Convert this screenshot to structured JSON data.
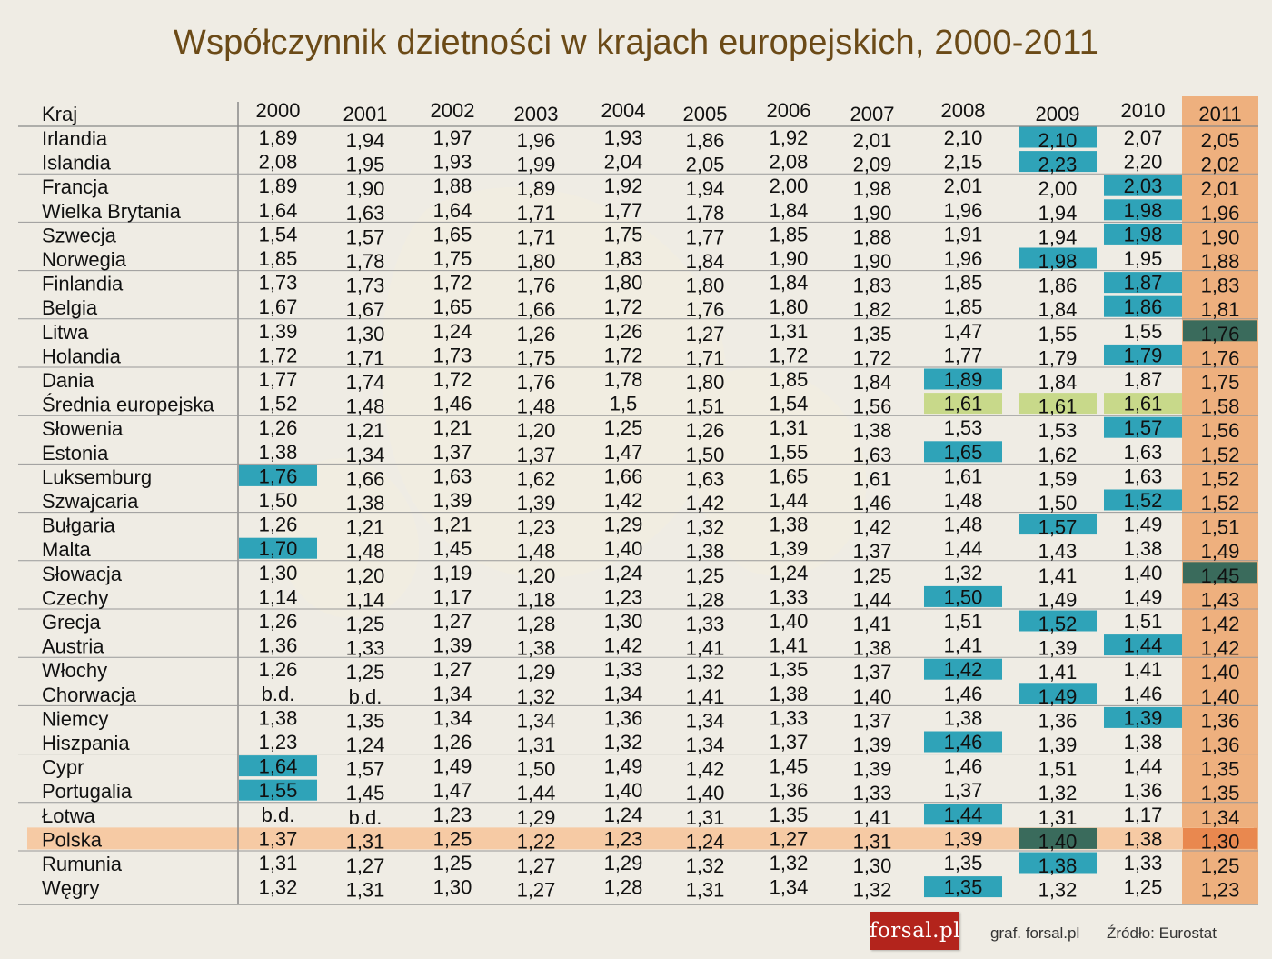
{
  "title": "Współczynnik dzietności w krajach europejskich, 2000-2011",
  "footer": {
    "logo": "forsal.pl",
    "credit": "graf. forsal.pl",
    "source": "Źródło: Eurostat"
  },
  "colors": {
    "teal_highlight": "#2fa3b8",
    "dark_highlight": "#3a6b5c",
    "green_highlight": "#c8d98a",
    "orange_column": "#eeb07e",
    "poland_row": "#f5c8a0",
    "title_color": "#6b4a17",
    "logo_red": "#b3241c"
  },
  "chart_data": {
    "type": "table",
    "title": "Współczynnik dzietności w krajach europejskich, 2000-2011",
    "row_header": "Kraj",
    "years": [
      "2000",
      "2001",
      "2002",
      "2003",
      "2004",
      "2005",
      "2006",
      "2007",
      "2008",
      "2009",
      "2010",
      "2011"
    ],
    "rows": [
      {
        "country": "Irlandia",
        "values": [
          "1,89",
          "1,94",
          "1,97",
          "1,96",
          "1,93",
          "1,86",
          "1,92",
          "2,01",
          "2,10",
          "2,10",
          "2,07",
          "2,05"
        ]
      },
      {
        "country": "Islandia",
        "values": [
          "2,08",
          "1,95",
          "1,93",
          "1,99",
          "2,04",
          "2,05",
          "2,08",
          "2,09",
          "2,15",
          "2,23",
          "2,20",
          "2,02"
        ]
      },
      {
        "country": "Francja",
        "values": [
          "1,89",
          "1,90",
          "1,88",
          "1,89",
          "1,92",
          "1,94",
          "2,00",
          "1,98",
          "2,01",
          "2,00",
          "2,03",
          "2,01"
        ]
      },
      {
        "country": "Wielka Brytania",
        "values": [
          "1,64",
          "1,63",
          "1,64",
          "1,71",
          "1,77",
          "1,78",
          "1,84",
          "1,90",
          "1,96",
          "1,94",
          "1,98",
          "1,96"
        ]
      },
      {
        "country": "Szwecja",
        "values": [
          "1,54",
          "1,57",
          "1,65",
          "1,71",
          "1,75",
          "1,77",
          "1,85",
          "1,88",
          "1,91",
          "1,94",
          "1,98",
          "1,90"
        ]
      },
      {
        "country": "Norwegia",
        "values": [
          "1,85",
          "1,78",
          "1,75",
          "1,80",
          "1,83",
          "1,84",
          "1,90",
          "1,90",
          "1,96",
          "1,98",
          "1,95",
          "1,88"
        ]
      },
      {
        "country": "Finlandia",
        "values": [
          "1,73",
          "1,73",
          "1,72",
          "1,76",
          "1,80",
          "1,80",
          "1,84",
          "1,83",
          "1,85",
          "1,86",
          "1,87",
          "1,83"
        ]
      },
      {
        "country": "Belgia",
        "values": [
          "1,67",
          "1,67",
          "1,65",
          "1,66",
          "1,72",
          "1,76",
          "1,80",
          "1,82",
          "1,85",
          "1,84",
          "1,86",
          "1,81"
        ]
      },
      {
        "country": "Litwa",
        "values": [
          "1,39",
          "1,30",
          "1,24",
          "1,26",
          "1,26",
          "1,27",
          "1,31",
          "1,35",
          "1,47",
          "1,55",
          "1,55",
          "1,76"
        ]
      },
      {
        "country": "Holandia",
        "values": [
          "1,72",
          "1,71",
          "1,73",
          "1,75",
          "1,72",
          "1,71",
          "1,72",
          "1,72",
          "1,77",
          "1,79",
          "1,79",
          "1,76"
        ]
      },
      {
        "country": "Dania",
        "values": [
          "1,77",
          "1,74",
          "1,72",
          "1,76",
          "1,78",
          "1,80",
          "1,85",
          "1,84",
          "1,89",
          "1,84",
          "1,87",
          "1,75"
        ]
      },
      {
        "country": "Średnia europejska",
        "values": [
          "1,52",
          "1,48",
          "1,46",
          "1,48",
          "1,5",
          "1,51",
          "1,54",
          "1,56",
          "1,61",
          "1,61",
          "1,61",
          "1,58"
        ]
      },
      {
        "country": "Słowenia",
        "values": [
          "1,26",
          "1,21",
          "1,21",
          "1,20",
          "1,25",
          "1,26",
          "1,31",
          "1,38",
          "1,53",
          "1,53",
          "1,57",
          "1,56"
        ]
      },
      {
        "country": "Estonia",
        "values": [
          "1,38",
          "1,34",
          "1,37",
          "1,37",
          "1,47",
          "1,50",
          "1,55",
          "1,63",
          "1,65",
          "1,62",
          "1,63",
          "1,52"
        ]
      },
      {
        "country": "Luksemburg",
        "values": [
          "1,76",
          "1,66",
          "1,63",
          "1,62",
          "1,66",
          "1,63",
          "1,65",
          "1,61",
          "1,61",
          "1,59",
          "1,63",
          "1,52"
        ]
      },
      {
        "country": "Szwajcaria",
        "values": [
          "1,50",
          "1,38",
          "1,39",
          "1,39",
          "1,42",
          "1,42",
          "1,44",
          "1,46",
          "1,48",
          "1,50",
          "1,52",
          "1,52"
        ]
      },
      {
        "country": "Bułgaria",
        "values": [
          "1,26",
          "1,21",
          "1,21",
          "1,23",
          "1,29",
          "1,32",
          "1,38",
          "1,42",
          "1,48",
          "1,57",
          "1,49",
          "1,51"
        ]
      },
      {
        "country": "Malta",
        "values": [
          "1,70",
          "1,48",
          "1,45",
          "1,48",
          "1,40",
          "1,38",
          "1,39",
          "1,37",
          "1,44",
          "1,43",
          "1,38",
          "1,49"
        ]
      },
      {
        "country": "Słowacja",
        "values": [
          "1,30",
          "1,20",
          "1,19",
          "1,20",
          "1,24",
          "1,25",
          "1,24",
          "1,25",
          "1,32",
          "1,41",
          "1,40",
          "1,45"
        ]
      },
      {
        "country": "Czechy",
        "values": [
          "1,14",
          "1,14",
          "1,17",
          "1,18",
          "1,23",
          "1,28",
          "1,33",
          "1,44",
          "1,50",
          "1,49",
          "1,49",
          "1,43"
        ]
      },
      {
        "country": "Grecja",
        "values": [
          "1,26",
          "1,25",
          "1,27",
          "1,28",
          "1,30",
          "1,33",
          "1,40",
          "1,41",
          "1,51",
          "1,52",
          "1,51",
          "1,42"
        ]
      },
      {
        "country": "Austria",
        "values": [
          "1,36",
          "1,33",
          "1,39",
          "1,38",
          "1,42",
          "1,41",
          "1,41",
          "1,38",
          "1,41",
          "1,39",
          "1,44",
          "1,42"
        ]
      },
      {
        "country": "Włochy",
        "values": [
          "1,26",
          "1,25",
          "1,27",
          "1,29",
          "1,33",
          "1,32",
          "1,35",
          "1,37",
          "1,42",
          "1,41",
          "1,41",
          "1,40"
        ]
      },
      {
        "country": "Chorwacja",
        "values": [
          "b.d.",
          "b.d.",
          "1,34",
          "1,32",
          "1,34",
          "1,41",
          "1,38",
          "1,40",
          "1,46",
          "1,49",
          "1,46",
          "1,40"
        ]
      },
      {
        "country": "Niemcy",
        "values": [
          "1,38",
          "1,35",
          "1,34",
          "1,34",
          "1,36",
          "1,34",
          "1,33",
          "1,37",
          "1,38",
          "1,36",
          "1,39",
          "1,36"
        ]
      },
      {
        "country": "Hiszpania",
        "values": [
          "1,23",
          "1,24",
          "1,26",
          "1,31",
          "1,32",
          "1,34",
          "1,37",
          "1,39",
          "1,46",
          "1,39",
          "1,38",
          "1,36"
        ]
      },
      {
        "country": "Cypr",
        "values": [
          "1,64",
          "1,57",
          "1,49",
          "1,50",
          "1,49",
          "1,42",
          "1,45",
          "1,39",
          "1,46",
          "1,51",
          "1,44",
          "1,35"
        ]
      },
      {
        "country": "Portugalia",
        "values": [
          "1,55",
          "1,45",
          "1,47",
          "1,44",
          "1,40",
          "1,40",
          "1,36",
          "1,33",
          "1,37",
          "1,32",
          "1,36",
          "1,35"
        ]
      },
      {
        "country": "Łotwa",
        "values": [
          "b.d.",
          "b.d.",
          "1,23",
          "1,29",
          "1,24",
          "1,31",
          "1,35",
          "1,41",
          "1,44",
          "1,31",
          "1,17",
          "1,34"
        ]
      },
      {
        "country": "Polska",
        "values": [
          "1,37",
          "1,31",
          "1,25",
          "1,22",
          "1,23",
          "1,24",
          "1,27",
          "1,31",
          "1,39",
          "1,40",
          "1,38",
          "1,30"
        ]
      },
      {
        "country": "Rumunia",
        "values": [
          "1,31",
          "1,27",
          "1,25",
          "1,27",
          "1,29",
          "1,32",
          "1,32",
          "1,30",
          "1,35",
          "1,38",
          "1,33",
          "1,25"
        ]
      },
      {
        "country": "Węgry",
        "values": [
          "1,32",
          "1,31",
          "1,30",
          "1,27",
          "1,28",
          "1,31",
          "1,34",
          "1,32",
          "1,35",
          "1,32",
          "1,25",
          "1,23"
        ]
      }
    ],
    "highlighted_row": "Polska",
    "highlighted_column": "2011",
    "highlights": [
      {
        "country": "Irlandia",
        "year": "2009",
        "color": "teal"
      },
      {
        "country": "Islandia",
        "year": "2009",
        "color": "teal"
      },
      {
        "country": "Francja",
        "year": "2010",
        "color": "teal"
      },
      {
        "country": "Wielka Brytania",
        "year": "2010",
        "color": "teal"
      },
      {
        "country": "Szwecja",
        "year": "2010",
        "color": "teal"
      },
      {
        "country": "Norwegia",
        "year": "2009",
        "color": "teal"
      },
      {
        "country": "Finlandia",
        "year": "2010",
        "color": "teal"
      },
      {
        "country": "Belgia",
        "year": "2010",
        "color": "teal"
      },
      {
        "country": "Litwa",
        "year": "2011",
        "color": "dark"
      },
      {
        "country": "Holandia",
        "year": "2010",
        "color": "teal"
      },
      {
        "country": "Dania",
        "year": "2008",
        "color": "teal"
      },
      {
        "country": "Średnia europejska",
        "year": "2008",
        "color": "green"
      },
      {
        "country": "Średnia europejska",
        "year": "2009",
        "color": "green"
      },
      {
        "country": "Średnia europejska",
        "year": "2010",
        "color": "green"
      },
      {
        "country": "Słowenia",
        "year": "2010",
        "color": "teal"
      },
      {
        "country": "Estonia",
        "year": "2008",
        "color": "teal"
      },
      {
        "country": "Luksemburg",
        "year": "2000",
        "color": "teal"
      },
      {
        "country": "Szwajcaria",
        "year": "2010",
        "color": "teal"
      },
      {
        "country": "Bułgaria",
        "year": "2009",
        "color": "teal"
      },
      {
        "country": "Malta",
        "year": "2000",
        "color": "teal"
      },
      {
        "country": "Słowacja",
        "year": "2011",
        "color": "dark"
      },
      {
        "country": "Czechy",
        "year": "2008",
        "color": "teal"
      },
      {
        "country": "Grecja",
        "year": "2009",
        "color": "teal"
      },
      {
        "country": "Austria",
        "year": "2010",
        "color": "teal"
      },
      {
        "country": "Włochy",
        "year": "2008",
        "color": "teal"
      },
      {
        "country": "Chorwacja",
        "year": "2009",
        "color": "teal"
      },
      {
        "country": "Niemcy",
        "year": "2010",
        "color": "teal"
      },
      {
        "country": "Hiszpania",
        "year": "2008",
        "color": "teal"
      },
      {
        "country": "Cypr",
        "year": "2000",
        "color": "teal"
      },
      {
        "country": "Portugalia",
        "year": "2000",
        "color": "teal"
      },
      {
        "country": "Łotwa",
        "year": "2008",
        "color": "teal"
      },
      {
        "country": "Polska",
        "year": "2009",
        "color": "dark"
      },
      {
        "country": "Polska",
        "year": "2011",
        "color": "orange"
      },
      {
        "country": "Rumunia",
        "year": "2009",
        "color": "teal"
      },
      {
        "country": "Węgry",
        "year": "2008",
        "color": "teal"
      }
    ]
  }
}
